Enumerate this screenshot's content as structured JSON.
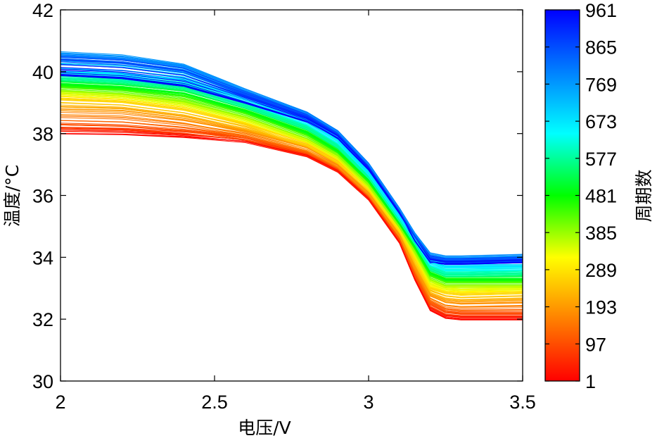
{
  "chart_data": {
    "type": "line",
    "title": "",
    "xlabel": "电压/V",
    "ylabel": "温度/°C",
    "xlim": [
      2,
      3.5
    ],
    "ylim": [
      30,
      42
    ],
    "xticks": [
      2,
      2.5,
      3,
      3.5
    ],
    "xtick_labels": [
      "2",
      "2.5",
      "3",
      "3.5"
    ],
    "yticks": [
      30,
      32,
      34,
      36,
      38,
      40,
      42
    ],
    "ytick_labels": [
      "30",
      "32",
      "34",
      "36",
      "38",
      "40",
      "42"
    ],
    "grid": false,
    "colorbar": {
      "label": "周期数",
      "colormap": "jet (reversed: low=red, high=blue)",
      "range": [
        1,
        961
      ],
      "tick_labels": [
        "1",
        "97",
        "193",
        "289",
        "385",
        "481",
        "577",
        "673",
        "769",
        "865",
        "961"
      ],
      "colors": [
        "#ff0000",
        "#ff8000",
        "#ffff00",
        "#00ff00",
        "#00ffff",
        "#0080ff",
        "#0000ff"
      ]
    },
    "series_summary": "One temperature-vs-voltage curve per cycle; early cycles (red) lower, later cycles (cyan/blue) higher; plateau at 2 V then drop near 3.0–3.2 V to a flat tail",
    "voltage_points": [
      2.0,
      2.2,
      2.4,
      2.6,
      2.8,
      2.9,
      3.0,
      3.1,
      3.15,
      3.2,
      3.25,
      3.3,
      3.5
    ],
    "series": [
      {
        "name": "cycle 1",
        "cycle": 1,
        "values": [
          38.0,
          37.98,
          37.9,
          37.75,
          37.3,
          36.8,
          35.9,
          34.5,
          33.3,
          32.3,
          32.05,
          32.0,
          32.0
        ]
      },
      {
        "name": "cycle 97",
        "cycle": 97,
        "values": [
          38.3,
          38.25,
          38.1,
          37.85,
          37.35,
          36.85,
          35.95,
          34.6,
          33.45,
          32.5,
          32.25,
          32.2,
          32.2
        ]
      },
      {
        "name": "cycle 193",
        "cycle": 193,
        "values": [
          38.8,
          38.75,
          38.5,
          38.1,
          37.55,
          37.0,
          36.1,
          34.75,
          33.7,
          32.8,
          32.6,
          32.55,
          32.6
        ]
      },
      {
        "name": "cycle 289",
        "cycle": 289,
        "values": [
          39.2,
          39.1,
          38.85,
          38.35,
          37.7,
          37.15,
          36.2,
          34.9,
          34.0,
          33.05,
          32.9,
          32.85,
          32.9
        ]
      },
      {
        "name": "cycle 385",
        "cycle": 385,
        "values": [
          39.4,
          39.3,
          39.05,
          38.55,
          37.85,
          37.3,
          36.35,
          35.0,
          34.2,
          33.3,
          33.1,
          33.1,
          33.1
        ]
      },
      {
        "name": "cycle 481",
        "cycle": 481,
        "values": [
          39.6,
          39.5,
          39.3,
          38.75,
          38.05,
          37.45,
          36.5,
          35.1,
          34.35,
          33.5,
          33.3,
          33.3,
          33.3
        ]
      },
      {
        "name": "cycle 577",
        "cycle": 577,
        "values": [
          39.8,
          39.7,
          39.5,
          38.9,
          38.2,
          37.6,
          36.6,
          35.2,
          34.45,
          33.65,
          33.45,
          33.45,
          33.5
        ]
      },
      {
        "name": "cycle 673",
        "cycle": 673,
        "values": [
          40.0,
          39.95,
          39.75,
          39.1,
          38.4,
          37.8,
          36.75,
          35.35,
          34.6,
          33.85,
          33.7,
          33.7,
          33.7
        ]
      },
      {
        "name": "cycle 769",
        "cycle": 769,
        "values": [
          40.6,
          40.5,
          40.2,
          39.4,
          38.65,
          38.05,
          37.0,
          35.55,
          34.75,
          34.1,
          34.0,
          34.0,
          34.05
        ]
      },
      {
        "name": "cycle 865",
        "cycle": 865,
        "values": [
          40.4,
          40.3,
          40.05,
          39.3,
          38.6,
          38.0,
          36.95,
          35.5,
          34.65,
          34.0,
          33.9,
          33.9,
          33.95
        ]
      },
      {
        "name": "cycle 961",
        "cycle": 961,
        "values": [
          39.9,
          39.8,
          39.55,
          39.0,
          38.4,
          37.85,
          36.85,
          35.45,
          34.55,
          33.85,
          33.8,
          33.8,
          33.85
        ]
      }
    ]
  }
}
